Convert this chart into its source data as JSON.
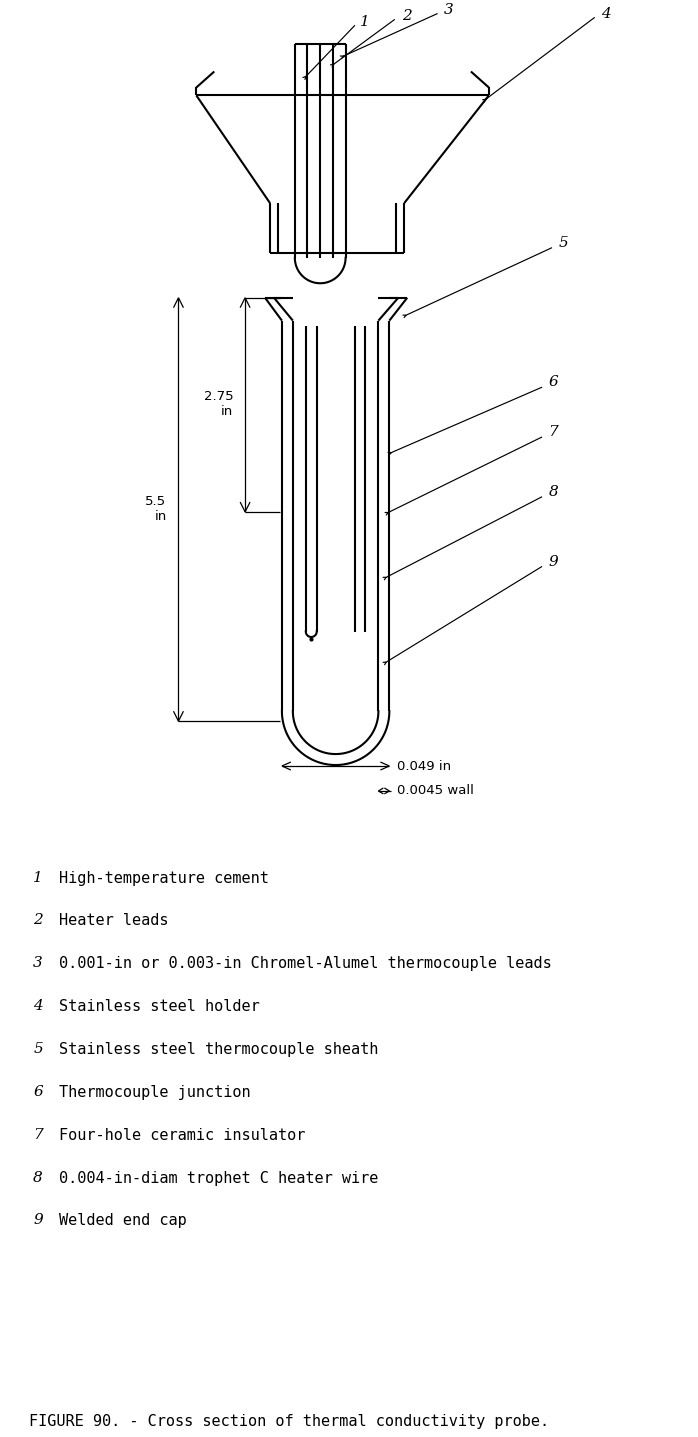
{
  "title": "FIGURE 90. - Cross section of thermal conductivity probe.",
  "legend_items": [
    {
      "num": "1",
      "text": "High-temperature cement"
    },
    {
      "num": "2",
      "text": "Heater leads"
    },
    {
      "num": "3",
      "text": "0.001-in or 0.003-in Chromel-Alumel thermocouple leads"
    },
    {
      "num": "4",
      "text": "Stainless steel holder"
    },
    {
      "num": "5",
      "text": "Stainless steel thermocouple sheath"
    },
    {
      "num": "6",
      "text": "Thermocouple junction"
    },
    {
      "num": "7",
      "text": "Four-hole ceramic insulator"
    },
    {
      "num": "8",
      "text": "0.004-in-diam trophet C heater wire"
    },
    {
      "num": "9",
      "text": "Welded end cap"
    }
  ],
  "dim_275": "2.75\nin",
  "dim_55": "5.5\nin",
  "dim_049": "0.049 in",
  "dim_0045": "0.0045 wall",
  "bg_color": "#ffffff",
  "line_color": "#000000",
  "lw": 1.5
}
